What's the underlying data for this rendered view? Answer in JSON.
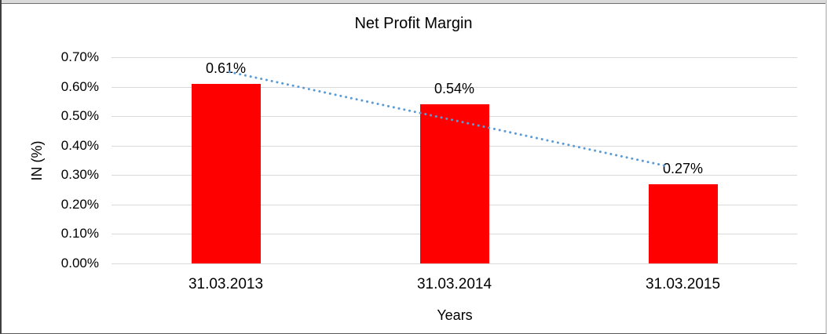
{
  "chart_data": {
    "type": "bar",
    "title": "Net Profit Margin",
    "xlabel": "Years",
    "ylabel": "IN (%)",
    "categories": [
      "31.03.2013",
      "31.03.2014",
      "31.03.2015"
    ],
    "values": [
      0.61,
      0.54,
      0.27
    ],
    "value_labels": [
      "0.61%",
      "0.54%",
      "0.27%"
    ],
    "y_ticks": [
      "0.70%",
      "0.60%",
      "0.50%",
      "0.40%",
      "0.30%",
      "0.20%",
      "0.10%",
      "0.00%"
    ],
    "y_tick_values": [
      0.7,
      0.6,
      0.5,
      0.4,
      0.3,
      0.2,
      0.1,
      0.0
    ],
    "ylim": [
      0,
      0.7
    ],
    "grid": true,
    "legend": "none",
    "bar_color": "#ff0000",
    "gridline_color": "#d9d9d9",
    "text_color": "#000000",
    "trendline": {
      "style": "dotted",
      "color": "#5b9bd5",
      "start": {
        "x_frac": 0.172,
        "value": 0.65
      },
      "end": {
        "x_frac": 0.811,
        "value": 0.33
      }
    }
  }
}
